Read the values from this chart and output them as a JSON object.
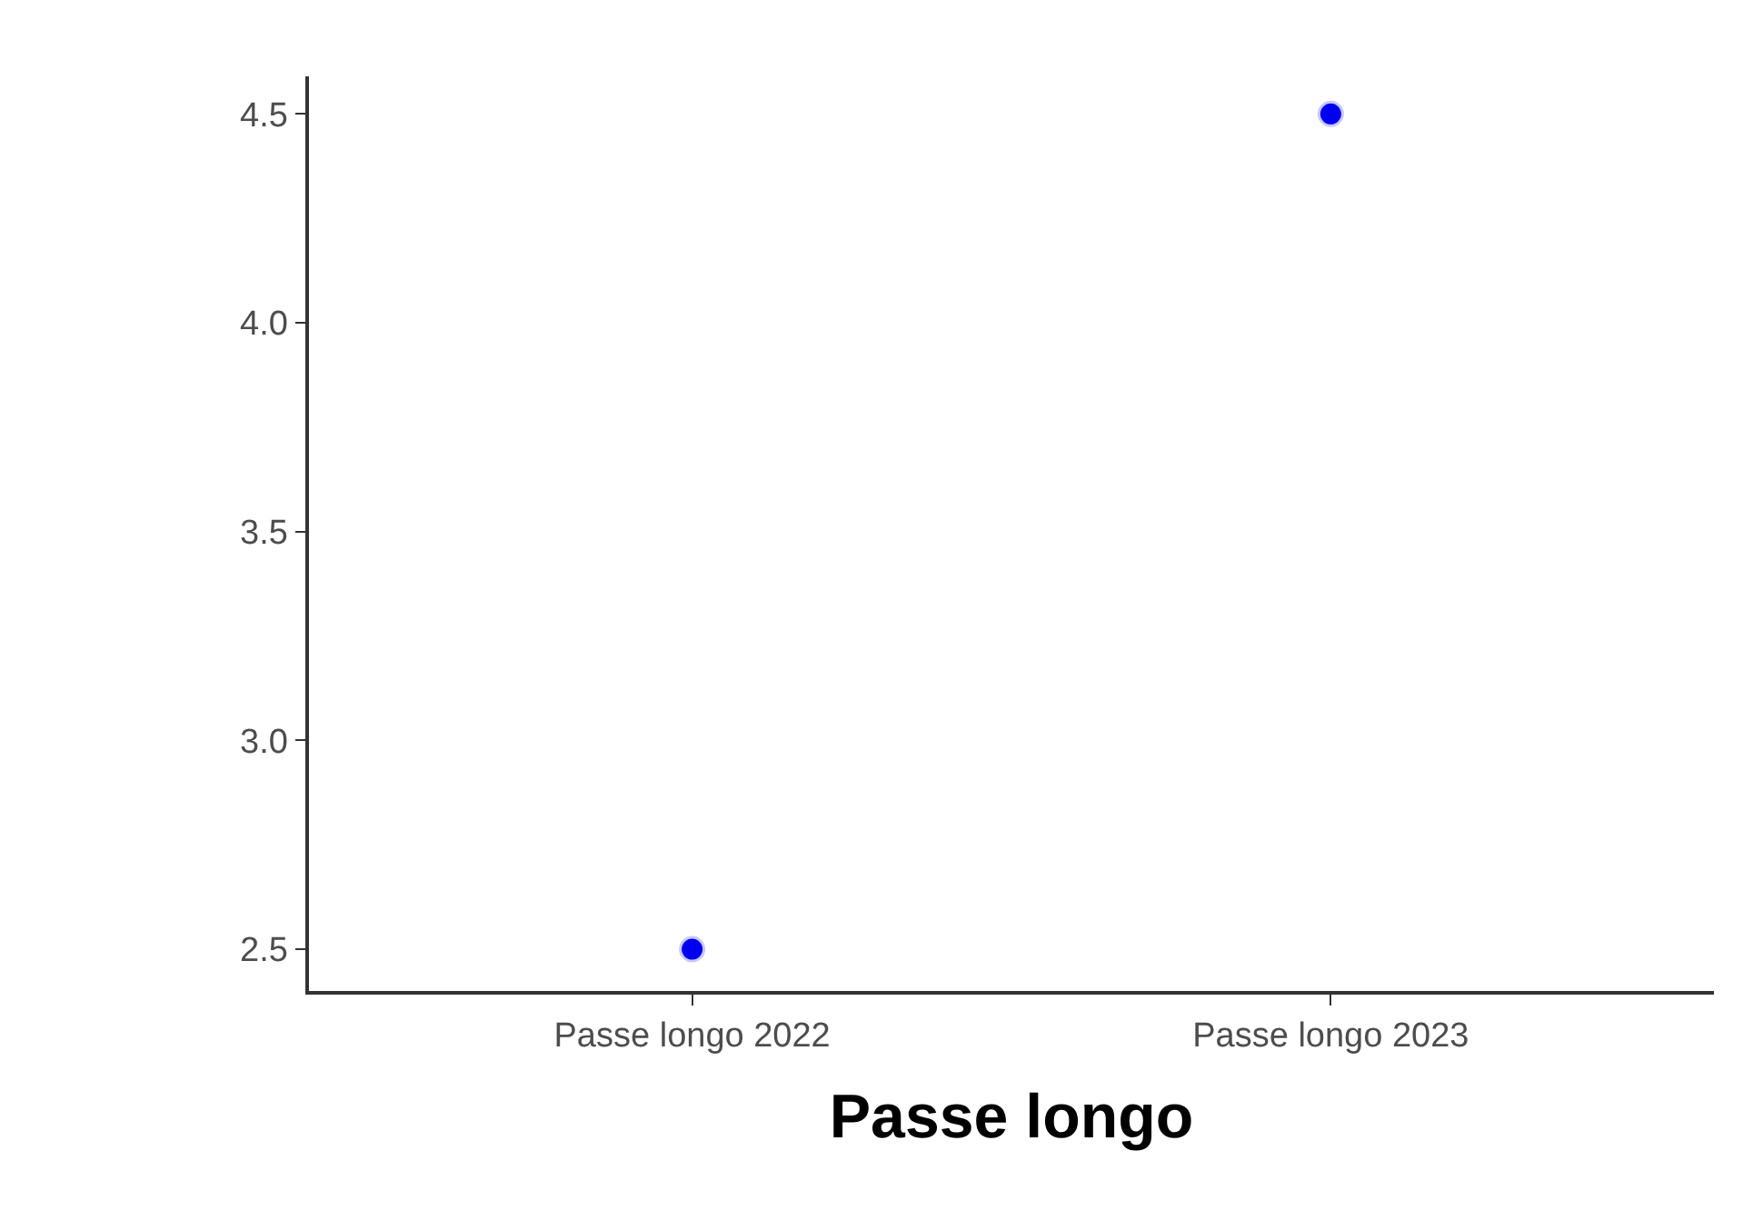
{
  "chart_data": {
    "type": "scatter",
    "xlabel": "Passe longo",
    "categories": [
      "Passe longo 2022",
      "Passe longo 2023"
    ],
    "series": [
      {
        "color": "#0000ee",
        "values": [
          2.5,
          4.5
        ]
      }
    ],
    "ylim": [
      2.4,
      4.59
    ],
    "yticks": [
      2.5,
      {
        "value": 3,
        "label": "3.0"
      },
      3.5,
      {
        "value": 4,
        "label": "4.0"
      },
      4.5
    ],
    "marker": "circle"
  }
}
